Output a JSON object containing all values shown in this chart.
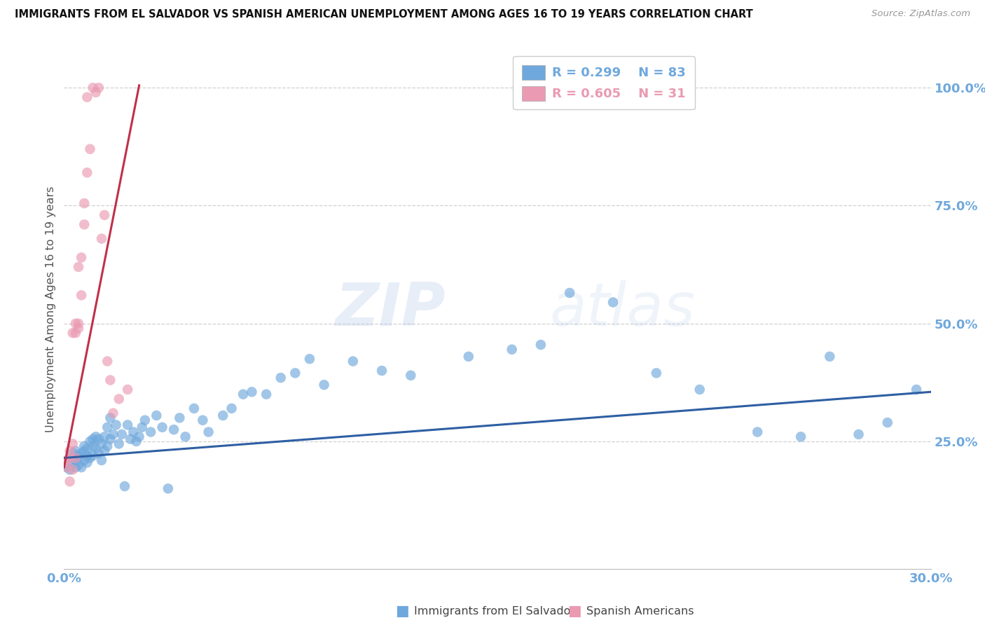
{
  "title": "IMMIGRANTS FROM EL SALVADOR VS SPANISH AMERICAN UNEMPLOYMENT AMONG AGES 16 TO 19 YEARS CORRELATION CHART",
  "source": "Source: ZipAtlas.com",
  "ylabel": "Unemployment Among Ages 16 to 19 years",
  "ytick_labels": [
    "100.0%",
    "75.0%",
    "50.0%",
    "25.0%"
  ],
  "ytick_values": [
    1.0,
    0.75,
    0.5,
    0.25
  ],
  "xlim": [
    0.0,
    0.3
  ],
  "ylim": [
    -0.02,
    1.08
  ],
  "blue_color": "#6fa8dc",
  "pink_color": "#ea9ab2",
  "blue_line_color": "#2e5fa3",
  "pink_line_color": "#c0304a",
  "legend_r1": "0.299",
  "legend_n1": "83",
  "legend_r2": "0.605",
  "legend_n2": "31",
  "watermark_zip": "ZIP",
  "watermark_atlas": "atlas",
  "blue_scatter_x": [
    0.001,
    0.002,
    0.002,
    0.003,
    0.003,
    0.004,
    0.004,
    0.004,
    0.005,
    0.005,
    0.005,
    0.006,
    0.006,
    0.007,
    0.007,
    0.007,
    0.008,
    0.008,
    0.008,
    0.009,
    0.009,
    0.01,
    0.01,
    0.01,
    0.011,
    0.011,
    0.012,
    0.012,
    0.013,
    0.013,
    0.014,
    0.014,
    0.015,
    0.015,
    0.016,
    0.016,
    0.017,
    0.018,
    0.019,
    0.02,
    0.021,
    0.022,
    0.023,
    0.024,
    0.025,
    0.026,
    0.027,
    0.028,
    0.03,
    0.032,
    0.034,
    0.036,
    0.038,
    0.04,
    0.042,
    0.045,
    0.048,
    0.05,
    0.055,
    0.058,
    0.062,
    0.065,
    0.07,
    0.075,
    0.08,
    0.085,
    0.09,
    0.1,
    0.11,
    0.12,
    0.14,
    0.155,
    0.165,
    0.175,
    0.19,
    0.205,
    0.22,
    0.24,
    0.255,
    0.265,
    0.275,
    0.285,
    0.295
  ],
  "blue_scatter_y": [
    0.195,
    0.215,
    0.19,
    0.205,
    0.225,
    0.21,
    0.195,
    0.23,
    0.22,
    0.2,
    0.215,
    0.225,
    0.195,
    0.23,
    0.21,
    0.24,
    0.22,
    0.205,
    0.235,
    0.25,
    0.215,
    0.24,
    0.255,
    0.22,
    0.235,
    0.26,
    0.225,
    0.255,
    0.21,
    0.245,
    0.23,
    0.26,
    0.24,
    0.28,
    0.255,
    0.3,
    0.265,
    0.285,
    0.245,
    0.265,
    0.155,
    0.285,
    0.255,
    0.27,
    0.25,
    0.26,
    0.28,
    0.295,
    0.27,
    0.305,
    0.28,
    0.15,
    0.275,
    0.3,
    0.26,
    0.32,
    0.295,
    0.27,
    0.305,
    0.32,
    0.35,
    0.355,
    0.35,
    0.385,
    0.395,
    0.425,
    0.37,
    0.42,
    0.4,
    0.39,
    0.43,
    0.445,
    0.455,
    0.565,
    0.545,
    0.395,
    0.36,
    0.27,
    0.26,
    0.43,
    0.265,
    0.29,
    0.36
  ],
  "pink_scatter_x": [
    0.001,
    0.001,
    0.002,
    0.002,
    0.002,
    0.003,
    0.003,
    0.003,
    0.004,
    0.004,
    0.004,
    0.005,
    0.005,
    0.005,
    0.006,
    0.006,
    0.007,
    0.007,
    0.008,
    0.008,
    0.009,
    0.01,
    0.011,
    0.012,
    0.013,
    0.014,
    0.015,
    0.016,
    0.017,
    0.019,
    0.022
  ],
  "pink_scatter_y": [
    0.195,
    0.21,
    0.165,
    0.215,
    0.23,
    0.19,
    0.245,
    0.48,
    0.215,
    0.5,
    0.48,
    0.49,
    0.5,
    0.62,
    0.56,
    0.64,
    0.71,
    0.755,
    0.82,
    0.98,
    0.87,
    1.0,
    0.99,
    1.0,
    0.68,
    0.73,
    0.42,
    0.38,
    0.31,
    0.34,
    0.36
  ],
  "blue_trend_x": [
    0.0,
    0.3
  ],
  "blue_trend_y": [
    0.215,
    0.355
  ],
  "pink_trend_x": [
    0.0,
    0.026
  ],
  "pink_trend_y": [
    0.195,
    1.005
  ]
}
